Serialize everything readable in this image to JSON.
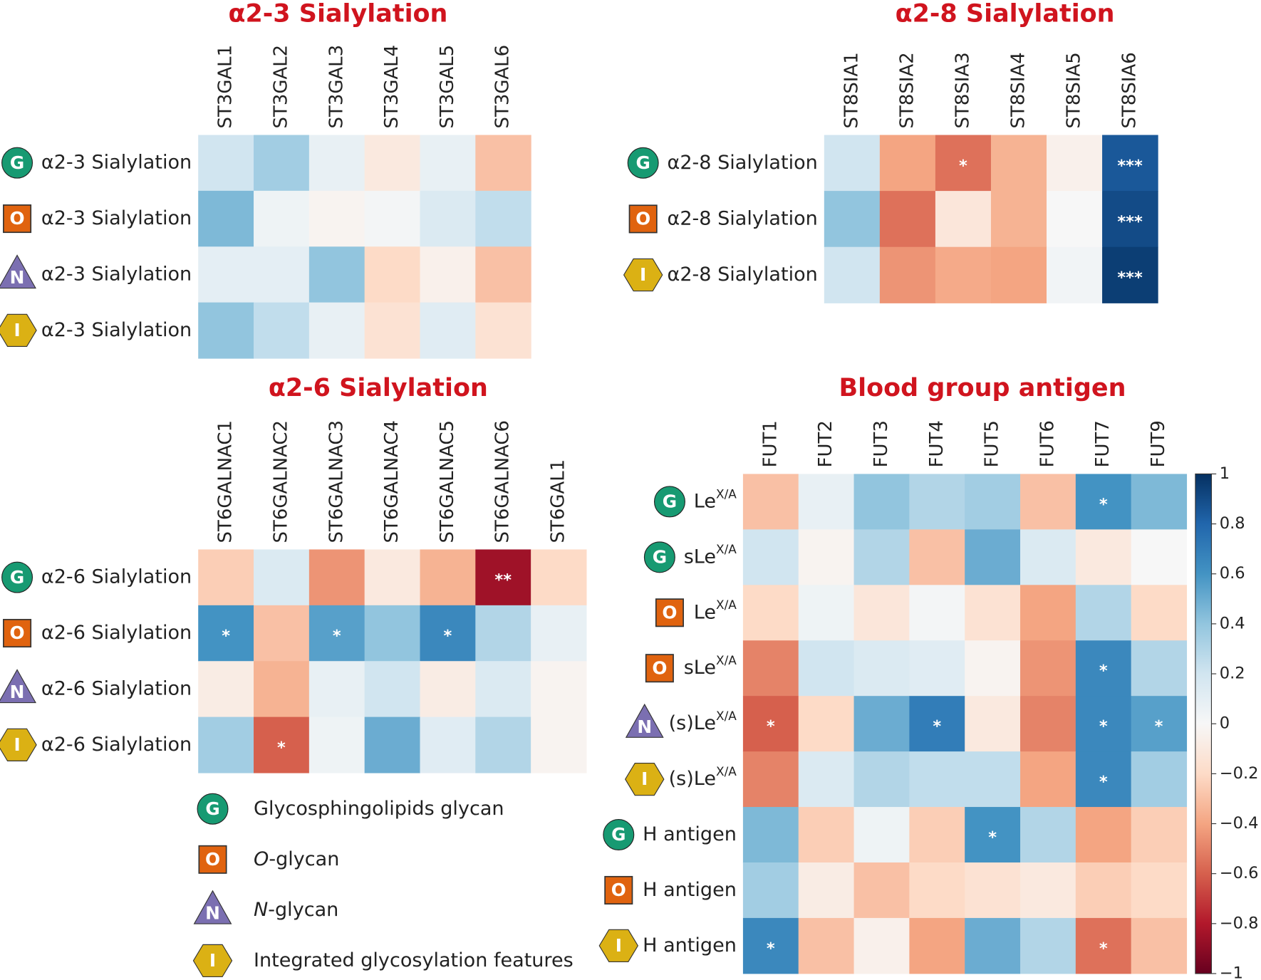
{
  "chart_data": [
    {
      "type": "heatmap",
      "title": "α2-3 Sialylation",
      "columns": [
        "ST3GAL1",
        "ST3GAL2",
        "ST3GAL3",
        "ST3GAL4",
        "ST3GAL5",
        "ST3GAL6"
      ],
      "rows": [
        {
          "icon": "G",
          "label": "α2-3 Sialylation"
        },
        {
          "icon": "O",
          "label": "α2-3 Sialylation"
        },
        {
          "icon": "N",
          "label": "α2-3 Sialylation"
        },
        {
          "icon": "I",
          "label": "α2-3 Sialylation"
        }
      ],
      "values": [
        [
          0.2,
          0.35,
          0.08,
          -0.1,
          0.08,
          -0.3
        ],
        [
          0.45,
          0.05,
          -0.03,
          0.02,
          0.15,
          0.25
        ],
        [
          0.1,
          0.1,
          0.4,
          -0.2,
          -0.05,
          -0.3
        ],
        [
          0.4,
          0.25,
          0.08,
          -0.15,
          0.12,
          -0.15
        ]
      ],
      "stars": [
        [
          null,
          null,
          null,
          null,
          null,
          null
        ],
        [
          null,
          null,
          null,
          null,
          null,
          null
        ],
        [
          null,
          null,
          null,
          null,
          null,
          null
        ],
        [
          null,
          null,
          null,
          null,
          null,
          null
        ]
      ]
    },
    {
      "type": "heatmap",
      "title": "α2-8 Sialylation",
      "columns": [
        "ST8SIA1",
        "ST8SIA2",
        "ST8SIA3",
        "ST8SIA4",
        "ST8SIA5",
        "ST8SIA6"
      ],
      "rows": [
        {
          "icon": "G",
          "label": "α2-8 Sialylation"
        },
        {
          "icon": "O",
          "label": "α2-8 Sialylation"
        },
        {
          "icon": "I",
          "label": "α2-8 Sialylation"
        }
      ],
      "values": [
        [
          0.2,
          -0.4,
          -0.55,
          -0.35,
          -0.05,
          0.85
        ],
        [
          0.4,
          -0.55,
          -0.12,
          -0.35,
          0.0,
          0.9
        ],
        [
          0.2,
          -0.45,
          -0.38,
          -0.4,
          0.03,
          0.95
        ]
      ],
      "stars": [
        [
          null,
          null,
          "*",
          null,
          null,
          "***"
        ],
        [
          null,
          null,
          null,
          null,
          null,
          "***"
        ],
        [
          null,
          null,
          null,
          null,
          null,
          "***"
        ]
      ]
    },
    {
      "type": "heatmap",
      "title": "α2-6 Sialylation",
      "columns": [
        "ST6GALNAC1",
        "ST6GALNAC2",
        "ST6GALNAC3",
        "ST6GALNAC4",
        "ST6GALNAC5",
        "ST6GALNAC6",
        "ST6GAL1"
      ],
      "rows": [
        {
          "icon": "G",
          "label": "α2-6 Sialylation"
        },
        {
          "icon": "O",
          "label": "α2-6 Sialylation"
        },
        {
          "icon": "N",
          "label": "α2-6 Sialylation"
        },
        {
          "icon": "I",
          "label": "α2-6 Sialylation"
        }
      ],
      "values": [
        [
          -0.25,
          0.15,
          -0.45,
          -0.1,
          -0.35,
          -0.85,
          -0.2
        ],
        [
          0.6,
          -0.3,
          0.55,
          0.4,
          0.65,
          0.3,
          0.08
        ],
        [
          -0.08,
          -0.35,
          0.08,
          0.2,
          -0.08,
          0.15,
          -0.03
        ],
        [
          0.35,
          -0.6,
          0.05,
          0.5,
          0.12,
          0.3,
          -0.03
        ]
      ],
      "stars": [
        [
          null,
          null,
          null,
          null,
          null,
          "**",
          null
        ],
        [
          "*",
          null,
          "*",
          null,
          "*",
          null,
          null
        ],
        [
          null,
          null,
          null,
          null,
          null,
          null,
          null
        ],
        [
          null,
          "*",
          null,
          null,
          null,
          null,
          null
        ]
      ]
    },
    {
      "type": "heatmap",
      "title": "Blood group antigen",
      "columns": [
        "FUT1",
        "FUT2",
        "FUT3",
        "FUT4",
        "FUT5",
        "FUT6",
        "FUT7",
        "FUT9"
      ],
      "rows": [
        {
          "icon": "G",
          "label": "Le",
          "sup": "X/A"
        },
        {
          "icon": "G",
          "label": "sLe",
          "sup": "X/A"
        },
        {
          "icon": "O",
          "label": "Le",
          "sup": "X/A"
        },
        {
          "icon": "O",
          "label": "sLe",
          "sup": "X/A"
        },
        {
          "icon": "N",
          "label": "(s)Le",
          "sup": "X/A"
        },
        {
          "icon": "I",
          "label": "(s)Le",
          "sup": "X/A"
        },
        {
          "icon": "G",
          "label": "H antigen"
        },
        {
          "icon": "O",
          "label": "H antigen"
        },
        {
          "icon": "I",
          "label": "H antigen"
        }
      ],
      "values": [
        [
          -0.3,
          0.08,
          0.4,
          0.3,
          0.35,
          -0.3,
          0.6,
          0.45
        ],
        [
          0.2,
          -0.03,
          0.3,
          -0.3,
          0.5,
          0.15,
          -0.1,
          0.0
        ],
        [
          -0.2,
          0.05,
          -0.12,
          0.02,
          -0.15,
          -0.4,
          0.3,
          -0.2
        ],
        [
          -0.5,
          0.2,
          0.15,
          0.12,
          -0.03,
          -0.45,
          0.65,
          0.3
        ],
        [
          -0.6,
          -0.2,
          0.5,
          0.7,
          -0.1,
          -0.5,
          0.65,
          0.55
        ],
        [
          -0.5,
          0.15,
          0.3,
          0.25,
          0.25,
          -0.4,
          0.65,
          0.35
        ],
        [
          0.45,
          -0.25,
          0.05,
          -0.25,
          0.6,
          0.3,
          -0.4,
          -0.25
        ],
        [
          0.35,
          -0.08,
          -0.3,
          -0.2,
          -0.15,
          -0.1,
          -0.25,
          -0.2
        ],
        [
          0.65,
          -0.3,
          -0.05,
          -0.4,
          0.5,
          0.3,
          -0.55,
          -0.3
        ]
      ],
      "stars": [
        [
          null,
          null,
          null,
          null,
          null,
          null,
          "*",
          null
        ],
        [
          null,
          null,
          null,
          null,
          null,
          null,
          null,
          null
        ],
        [
          null,
          null,
          null,
          null,
          null,
          null,
          null,
          null
        ],
        [
          null,
          null,
          null,
          null,
          null,
          null,
          "*",
          null
        ],
        [
          "*",
          null,
          null,
          "*",
          null,
          null,
          "*",
          "*"
        ],
        [
          null,
          null,
          null,
          null,
          null,
          null,
          "*",
          null
        ],
        [
          null,
          null,
          null,
          null,
          "*",
          null,
          null,
          null
        ],
        [
          null,
          null,
          null,
          null,
          null,
          null,
          null,
          null
        ],
        [
          "*",
          null,
          null,
          null,
          null,
          null,
          "*",
          null
        ]
      ],
      "colormap": "RdBu",
      "zlim": [
        -1,
        1
      ],
      "zticks": [
        1,
        0.8,
        0.6,
        0.4,
        0.2,
        0,
        {
          "value": -0.2,
          "label": "−0.2"
        },
        {
          "value": -0.4,
          "label": "−0.4"
        },
        {
          "value": -0.6,
          "label": "−0.6"
        },
        {
          "value": -0.8,
          "label": "−0.8"
        },
        {
          "value": -1,
          "label": "−1"
        }
      ]
    }
  ],
  "legend": {
    "items": [
      {
        "icon": "G",
        "label": "Glycosphingolipids glycan"
      },
      {
        "icon": "O",
        "italic": "O",
        "label": "-glycan"
      },
      {
        "icon": "N",
        "italic": "N",
        "label": "-glycan"
      },
      {
        "icon": "I",
        "label": "Integrated glycosylation features"
      }
    ]
  }
}
